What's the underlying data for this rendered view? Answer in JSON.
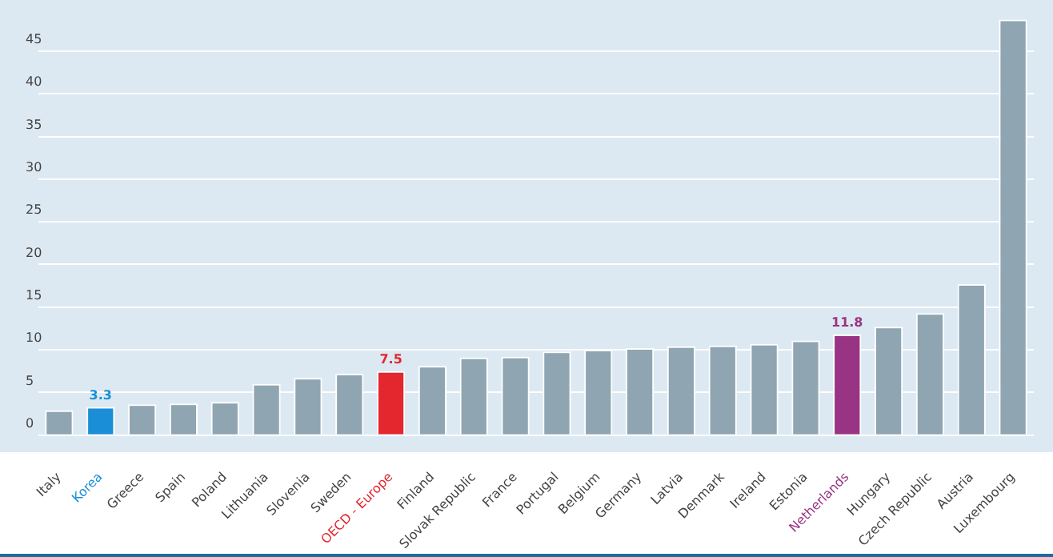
{
  "chart_data": {
    "type": "bar",
    "categories": [
      "Italy",
      "Korea",
      "Greece",
      "Spain",
      "Poland",
      "Lithuania",
      "Slovenia",
      "Sweden",
      "OECD - Europe",
      "Finland",
      "Slovak Republic",
      "France",
      "Portugal",
      "Belgium",
      "Germany",
      "Latvia",
      "Denmark",
      "Ireland",
      "Estonia",
      "Netherlands",
      "Hungary",
      "Czech Republic",
      "Austria",
      "Luxembourg"
    ],
    "values": [
      2.9,
      3.3,
      3.6,
      3.7,
      3.9,
      6.0,
      6.7,
      7.2,
      7.5,
      8.1,
      9.1,
      9.2,
      9.8,
      10.0,
      10.2,
      10.4,
      10.5,
      10.7,
      11.1,
      11.8,
      12.7,
      14.3,
      17.7,
      48.7
    ],
    "colors": [
      "#8fa5b2",
      "#1a8fd8",
      "#8fa5b2",
      "#8fa5b2",
      "#8fa5b2",
      "#8fa5b2",
      "#8fa5b2",
      "#8fa5b2",
      "#e4262e",
      "#8fa5b2",
      "#8fa5b2",
      "#8fa5b2",
      "#8fa5b2",
      "#8fa5b2",
      "#8fa5b2",
      "#8fa5b2",
      "#8fa5b2",
      "#8fa5b2",
      "#8fa5b2",
      "#993484",
      "#8fa5b2",
      "#8fa5b2",
      "#8fa5b2",
      "#8fa5b2"
    ],
    "value_labels": [
      null,
      "3.3",
      null,
      null,
      null,
      null,
      null,
      null,
      "7.5",
      null,
      null,
      null,
      null,
      null,
      null,
      null,
      null,
      null,
      null,
      "11.8",
      null,
      null,
      null,
      null
    ],
    "ylim": [
      -2,
      51
    ],
    "yticks": [
      0,
      5,
      10,
      15,
      20,
      25,
      30,
      35,
      40,
      45
    ],
    "grid": "y"
  }
}
